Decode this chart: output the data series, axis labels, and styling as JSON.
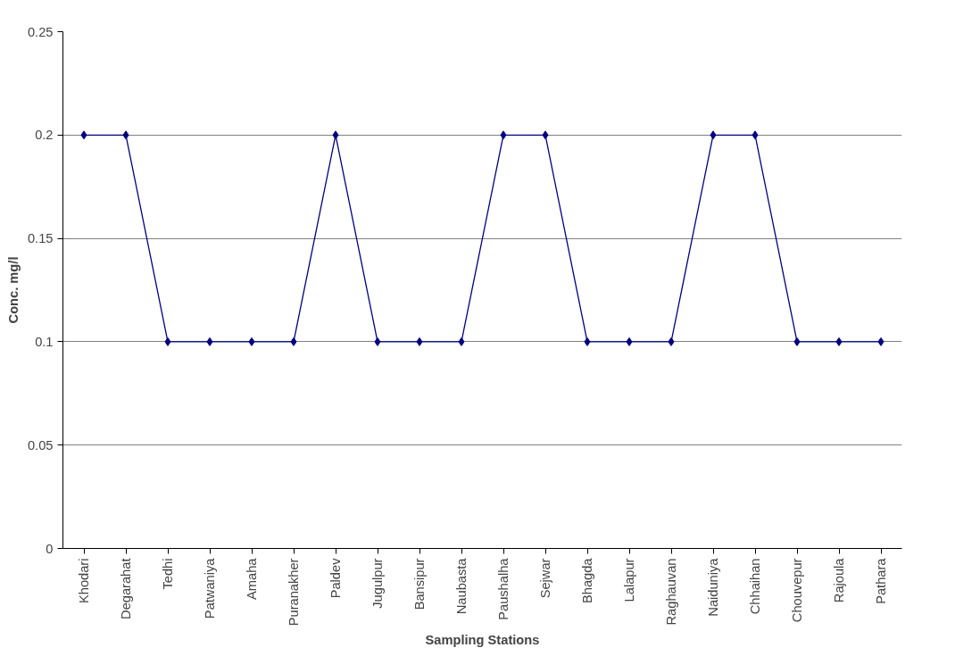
{
  "chart_data": {
    "type": "line",
    "xlabel": "Sampling Stations",
    "ylabel": "Conc. mg/l",
    "categories": [
      "Khodari",
      "Degarahat",
      "Tedhi",
      "Patwaniya",
      "Amaha",
      "Puranakher",
      "Paldev",
      "Jugulpur",
      "Bansipur",
      "Naubasta",
      "Paushalha",
      "Sejwar",
      "Bhagda",
      "Lalapur",
      "Raghauvan",
      "Naiduniya",
      "Chhaihan",
      "Chouvepur",
      "Rajoula",
      "Pathara"
    ],
    "series": [
      {
        "color": "#000080",
        "values": [
          0.2,
          0.2,
          0.1,
          0.1,
          0.1,
          0.1,
          0.2,
          0.1,
          0.1,
          0.1,
          0.2,
          0.2,
          0.1,
          0.1,
          0.1,
          0.2,
          0.2,
          0.1,
          0.1,
          0.1
        ]
      }
    ],
    "ylim": [
      0,
      0.25
    ],
    "yticks": [
      0,
      0.05,
      0.1,
      0.15,
      0.2,
      0.25
    ],
    "grid": "y",
    "marker": "diamond",
    "line_style": "solid"
  }
}
